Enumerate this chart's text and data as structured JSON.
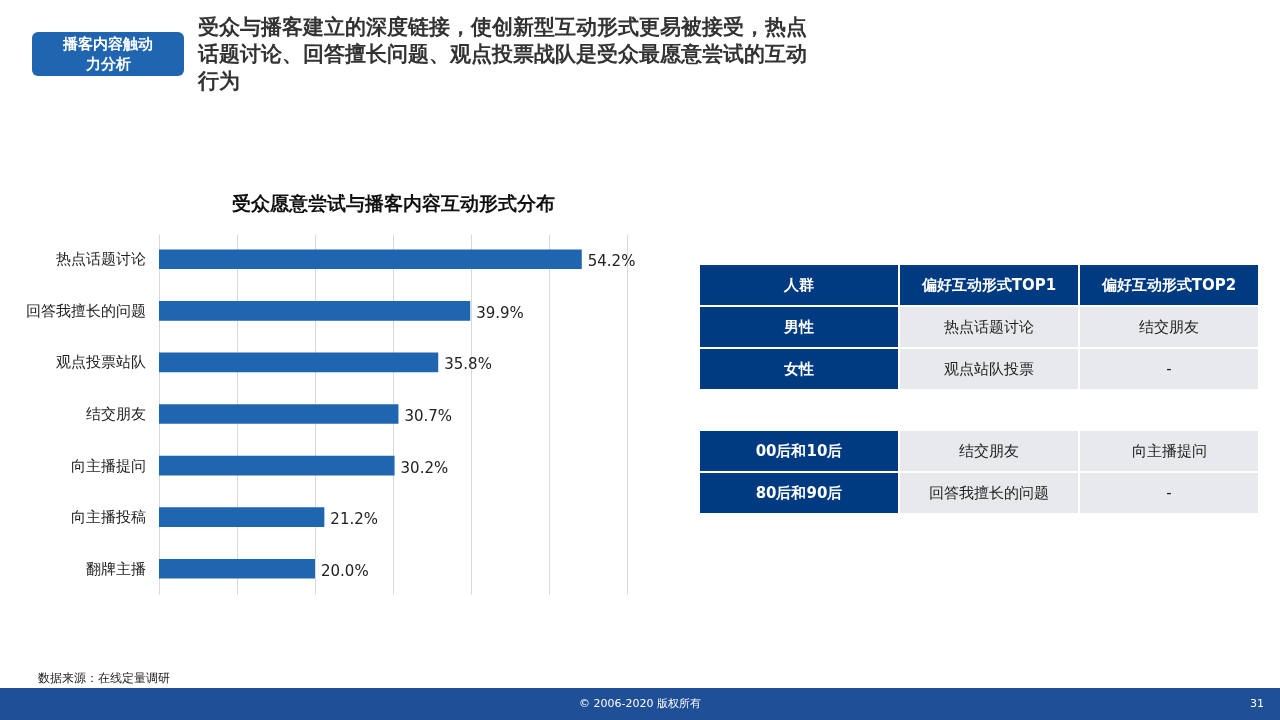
{
  "chart_data": [
    {
      "type": "bar",
      "orientation": "horizontal",
      "title": "受众愿意尝试与播客内容互动形式分布",
      "categories": [
        "热点话题讨论",
        "回答我擅长的问题",
        "观点投票站队",
        "结交朋友",
        "向主播提问",
        "向主播投稿",
        "翻牌主播"
      ],
      "values": [
        54.2,
        39.9,
        35.8,
        30.7,
        30.2,
        21.2,
        20.0
      ],
      "value_labels": [
        "54.2%",
        "39.9%",
        "35.8%",
        "30.7%",
        "30.2%",
        "21.2%",
        "20.0%"
      ],
      "color": "#1f65b0",
      "xlim": [
        0,
        60
      ],
      "xticks": [
        {
          "value": 0,
          "label": null
        },
        {
          "value": 10,
          "label": null
        },
        {
          "value": 20,
          "label": null
        },
        {
          "value": 30,
          "label": null
        },
        {
          "value": 40,
          "label": null
        },
        {
          "value": 50,
          "label": null
        },
        {
          "value": 60,
          "label": null
        }
      ],
      "grid": "x",
      "tick_labels": "y",
      "annotations": [
        "播客内容触动力分析",
        "受众与播客建立的深度链接，使创新型互动形式更易被接受，热点话题讨论、回答擅长问题、观点投票战队是受众最愿意尝试的互动行为",
        "数据来源：在线定量调研",
        "© 2006-2020 版权所有",
        "31"
      ]
    },
    {
      "type": "other",
      "ylabel": "人群",
      "categories": [
        "偏好互动形式TOP1",
        "偏好互动形式TOP2"
      ],
      "y_categories": [
        "男性",
        "女性"
      ],
      "cell_labels": [
        [
          "热点话题讨论",
          "结交朋友"
        ],
        [
          "观点站队投票",
          "-"
        ]
      ]
    },
    {
      "type": "other",
      "y_categories": [
        "00后和10后",
        "80后和90后"
      ],
      "cell_labels": [
        [
          "结交朋友",
          "向主播提问"
        ],
        [
          "回答我擅长的问题",
          "-"
        ]
      ]
    }
  ]
}
